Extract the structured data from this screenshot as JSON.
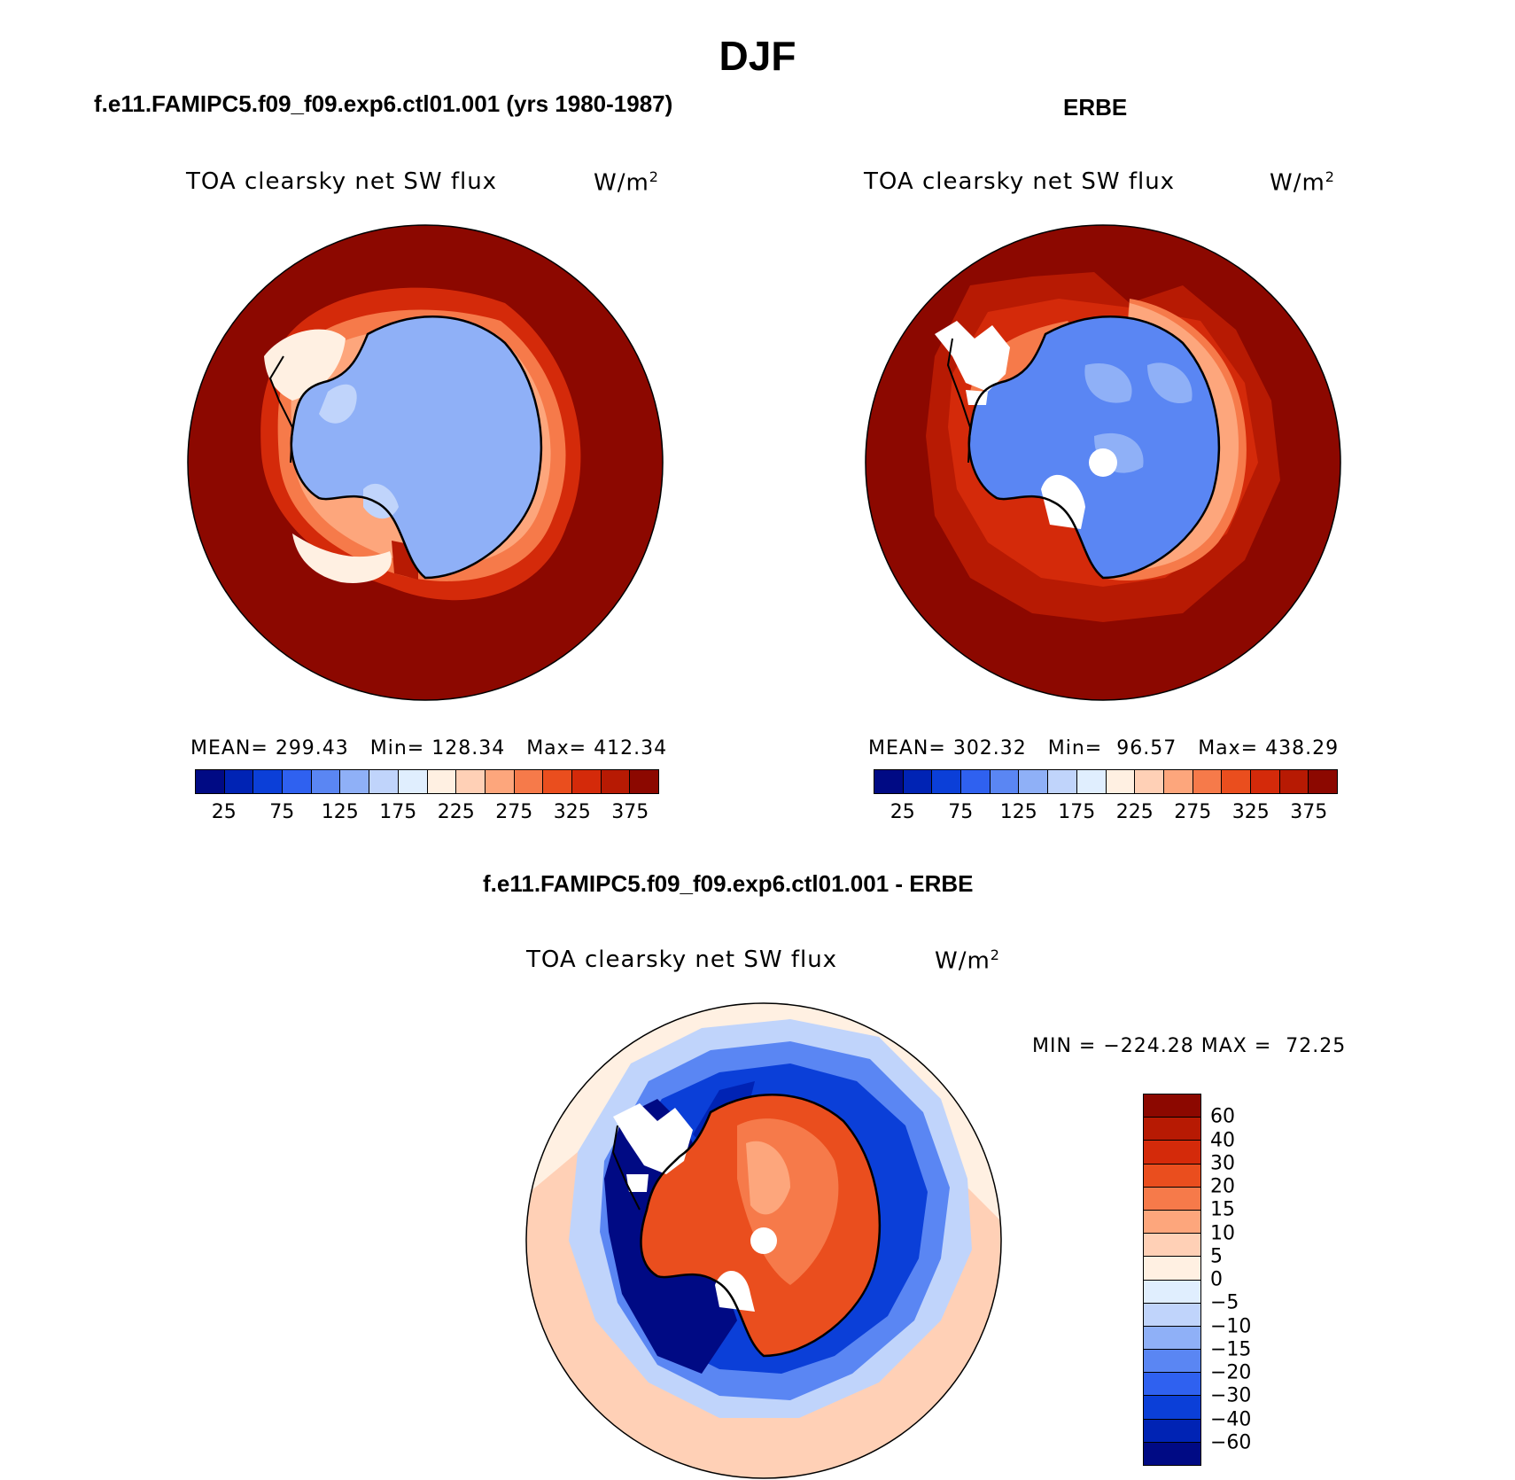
{
  "figure": {
    "title": "DJF"
  },
  "panel_model": {
    "case_title": "f.e11.FAMIPC5.f09_f09.exp6.ctl01.001 (yrs 1980-1987)",
    "variable": "TOA clearsky net SW flux",
    "units_base": "W/m",
    "units_exp": "2",
    "stats": "MEAN= 299.43   Min= 128.34   Max= 412.34"
  },
  "panel_obs": {
    "case_title": "ERBE",
    "variable": "TOA clearsky net SW flux",
    "units_base": "W/m",
    "units_exp": "2",
    "stats": "MEAN= 302.32   Min=  96.57   Max= 438.29"
  },
  "panel_diff": {
    "case_title": "f.e11.FAMIPC5.f09_f09.exp6.ctl01.001 - ERBE",
    "variable": "TOA clearsky net SW flux",
    "units_base": "W/m",
    "units_exp": "2",
    "stats": "MIN = −224.28 MAX =  72.25"
  },
  "field_colorbar": {
    "colors": [
      "#000a84",
      "#0023b4",
      "#0b3fd8",
      "#2f61f0",
      "#5a86f3",
      "#8fb0f7",
      "#c0d4fb",
      "#e0eefe",
      "#fff0e2",
      "#ffd0b6",
      "#fda67c",
      "#f67a4a",
      "#ea4e1e",
      "#d42a0a",
      "#b71a03",
      "#8c0800"
    ],
    "labels": [
      "25",
      "75",
      "125",
      "175",
      "225",
      "275",
      "325",
      "375"
    ]
  },
  "diff_colorbar": {
    "colors": [
      "#8c0800",
      "#b71a03",
      "#d42a0a",
      "#ea4e1e",
      "#f67a4a",
      "#fda67c",
      "#ffd0b6",
      "#fff0e2",
      "#e0eefe",
      "#c0d4fb",
      "#8fb0f7",
      "#5a86f3",
      "#2f61f0",
      "#0b3fd8",
      "#0023b4",
      "#000a84"
    ],
    "labels": [
      "60",
      "40",
      "30",
      "20",
      "15",
      "10",
      "5",
      "0",
      "−5",
      "−10",
      "−15",
      "−20",
      "−30",
      "−40",
      "−60"
    ]
  }
}
